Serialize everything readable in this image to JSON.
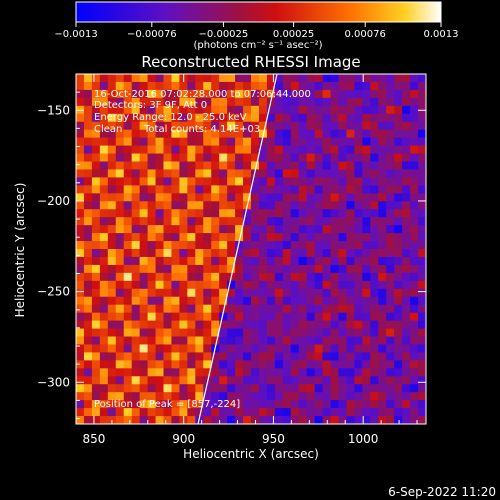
{
  "chart_data": {
    "type": "heatmap",
    "title": "Reconstructed RHESSI Image",
    "xlabel": "Heliocentric X (arcsec)",
    "ylabel": "Heliocentric Y (arcsec)",
    "xlim": [
      840,
      1035
    ],
    "ylim": [
      -323,
      -130
    ],
    "x_ticks": [
      850,
      900,
      950,
      1000
    ],
    "x_tick_labels": [
      "850",
      "900",
      "950",
      "1000"
    ],
    "y_ticks": [
      -300,
      -250,
      -200,
      -150
    ],
    "y_tick_labels": [
      "−300",
      "−250",
      "−200",
      "−150"
    ],
    "colorbar": {
      "min": -0.0013,
      "max": 0.0013,
      "ticks": [
        -0.0013,
        -0.00076,
        -0.00025,
        0.00025,
        0.00076,
        0.0013
      ],
      "tick_labels": [
        "−0.0013",
        "−0.00076",
        "−0.00025",
        "0.00025",
        "0.00076",
        "0.0013"
      ],
      "units_label": "(photons cm⁻² s⁻¹ asec⁻²)"
    },
    "limb_line": [
      [
        908,
        -323
      ],
      [
        952,
        -130
      ]
    ],
    "grid": false
  },
  "annotations": {
    "time_range": "16-Oct-2016 07:02:28.000 to 07:06:44.000",
    "detectors": "Detectors: 3F 9F, Att 0",
    "energy": "Energy Range: 12.0 - 25.0 keV",
    "clean": "Clean",
    "counts": "Total counts: 4.14E+03",
    "peak": "Position of Peak = [857,-224]"
  },
  "footer": {
    "date": "6-Sep-2022 11:20"
  }
}
